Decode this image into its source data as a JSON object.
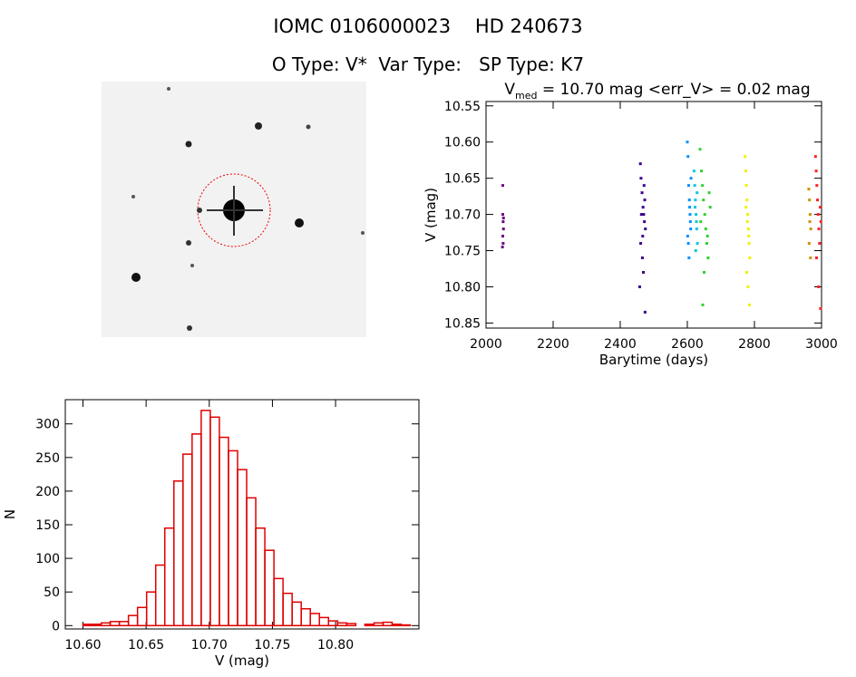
{
  "header": {
    "line1": "IOMC 0106000023    HD 240673",
    "line2": "O Type: V*  Var Type:   SP Type: K7"
  },
  "chart_data": [
    {
      "type": "scatter",
      "title": [
        "V",
        "med",
        " = 10.70 mag <err_V> = 0.02 mag"
      ],
      "xlabel": "Barytime (days)",
      "ylabel": "V (mag)",
      "xlim": [
        2000,
        3000
      ],
      "ylim": [
        10.544,
        10.857
      ],
      "y_inverted": true,
      "xticks": [
        2000,
        2200,
        2400,
        2600,
        2800,
        3000
      ],
      "yticks": [
        {
          "value": 10.55,
          "label": "10.55"
        },
        {
          "value": 10.6,
          "label": "10.60"
        },
        {
          "value": 10.65,
          "label": "10.65"
        },
        {
          "value": 10.7,
          "label": "10.70"
        },
        {
          "value": 10.75,
          "label": "10.75"
        },
        {
          "value": 10.8,
          "label": "10.80"
        },
        {
          "value": 10.85,
          "label": "10.85"
        }
      ],
      "series": [
        {
          "color": "#6a0080",
          "x": [
            2050,
            2050,
            2051,
            2052,
            2050,
            2051,
            2049,
            2052
          ],
          "values": [
            10.66,
            10.7,
            10.71,
            10.72,
            10.73,
            10.74,
            10.745,
            10.705
          ]
        },
        {
          "color": "#3a0090",
          "x": [
            2460,
            2462,
            2465,
            2468,
            2470,
            2472,
            2475,
            2461,
            2466,
            2469,
            2473,
            2463,
            2467,
            2471,
            2458,
            2474
          ],
          "values": [
            10.63,
            10.65,
            10.67,
            10.69,
            10.7,
            10.71,
            10.72,
            10.74,
            10.76,
            10.78,
            10.68,
            10.7,
            10.73,
            10.66,
            10.8,
            10.835
          ]
        },
        {
          "color": "#0090ff",
          "x": [
            2600,
            2602,
            2604,
            2606,
            2608,
            2610,
            2603,
            2605,
            2607,
            2609,
            2601,
            2611
          ],
          "values": [
            10.6,
            10.62,
            10.66,
            10.68,
            10.7,
            10.72,
            10.74,
            10.76,
            10.69,
            10.71,
            10.73,
            10.65
          ]
        },
        {
          "color": "#00c8e0",
          "x": [
            2620,
            2622,
            2624,
            2626,
            2628,
            2630,
            2623,
            2627,
            2625,
            2629
          ],
          "values": [
            10.64,
            10.66,
            10.68,
            10.7,
            10.72,
            10.74,
            10.69,
            10.71,
            10.75,
            10.67
          ]
        },
        {
          "color": "#30d030",
          "x": [
            2638,
            2642,
            2645,
            2648,
            2652,
            2655,
            2658,
            2662,
            2665,
            2668,
            2640,
            2650,
            2660,
            2646
          ],
          "values": [
            10.61,
            10.64,
            10.66,
            10.68,
            10.7,
            10.72,
            10.74,
            10.76,
            10.67,
            10.69,
            10.71,
            10.78,
            10.73,
            10.825
          ]
        },
        {
          "color": "#f0f000",
          "x": [
            2772,
            2774,
            2776,
            2778,
            2780,
            2782,
            2784,
            2786,
            2775,
            2779,
            2783,
            2777,
            2781,
            2785
          ],
          "values": [
            10.62,
            10.64,
            10.66,
            10.68,
            10.7,
            10.72,
            10.74,
            10.76,
            10.69,
            10.71,
            10.73,
            10.78,
            10.8,
            10.825
          ]
        },
        {
          "color": "#d09000",
          "x": [
            2962,
            2964,
            2966,
            2968,
            2963,
            2967,
            2965
          ],
          "values": [
            10.665,
            10.68,
            10.7,
            10.72,
            10.74,
            10.76,
            10.71
          ]
        },
        {
          "color": "#ff2020",
          "x": [
            2982,
            2984,
            2986,
            2988,
            2990,
            2992,
            2994,
            2996,
            2998,
            2985,
            2991,
            2997
          ],
          "values": [
            10.62,
            10.64,
            10.66,
            10.68,
            10.7,
            10.72,
            10.74,
            10.69,
            10.71,
            10.76,
            10.8,
            10.83
          ]
        }
      ]
    },
    {
      "type": "histogram",
      "color": "#e00000",
      "xlabel": "V (mag)",
      "ylabel": "N",
      "xlim": [
        10.586,
        10.866
      ],
      "ylim": [
        -5,
        336
      ],
      "xticks": [
        {
          "value": 10.6,
          "label": "10.60"
        },
        {
          "value": 10.65,
          "label": "10.65"
        },
        {
          "value": 10.7,
          "label": "10.70"
        },
        {
          "value": 10.75,
          "label": "10.75"
        },
        {
          "value": 10.8,
          "label": "10.80"
        }
      ],
      "yticks": [
        0,
        50,
        100,
        150,
        200,
        250,
        300
      ],
      "bins": [
        10.6,
        10.6072,
        10.6144,
        10.6216,
        10.6288,
        10.636,
        10.6432,
        10.6504,
        10.6576,
        10.6648,
        10.672,
        10.6792,
        10.6864,
        10.6936,
        10.7008,
        10.708,
        10.7152,
        10.7224,
        10.7296,
        10.7368,
        10.744,
        10.7512,
        10.7584,
        10.7656,
        10.7728,
        10.78,
        10.7872,
        10.7944,
        10.8016,
        10.8088,
        10.816,
        10.8232,
        10.8304,
        10.8376,
        10.8448,
        10.852,
        10.8592
      ],
      "values": [
        2,
        2,
        4,
        6,
        6,
        15,
        27,
        50,
        90,
        145,
        215,
        255,
        285,
        320,
        310,
        280,
        260,
        232,
        190,
        145,
        112,
        70,
        48,
        35,
        25,
        18,
        12,
        7,
        4,
        3,
        0,
        2,
        4,
        5,
        2,
        1
      ]
    }
  ]
}
